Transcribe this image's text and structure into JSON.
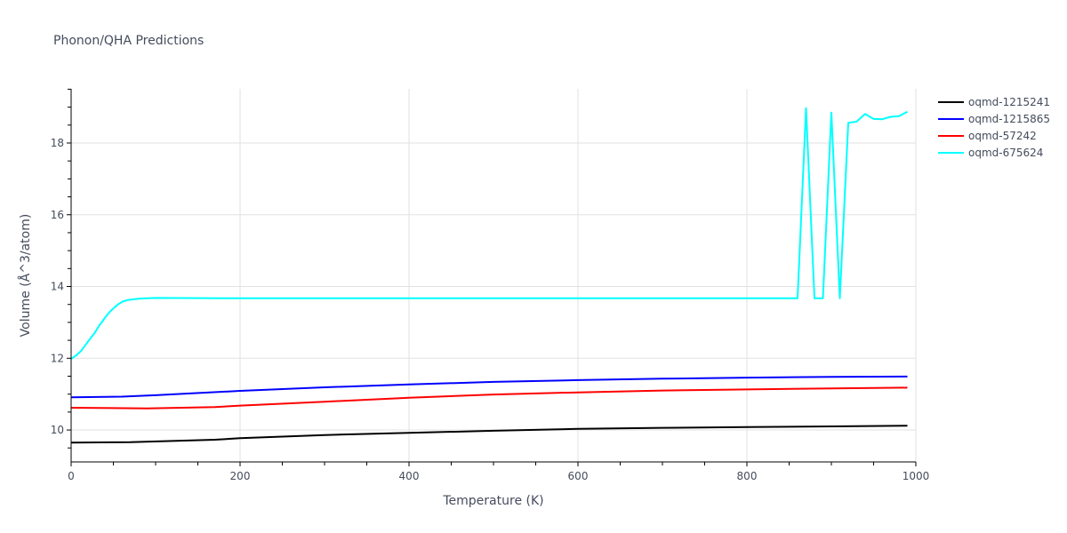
{
  "chart_data": {
    "type": "line",
    "title": "Phonon/QHA Predictions",
    "xlabel": "Temperature (K)",
    "ylabel": "Volume (Å^3/atom)",
    "xlim": [
      0,
      1000
    ],
    "ylim": [
      9.11,
      19.51
    ],
    "x_ticks": [
      0,
      200,
      400,
      600,
      800,
      1000
    ],
    "y_ticks": [
      10,
      12,
      14,
      16,
      18
    ],
    "grid": true,
    "legend_position": "right-top",
    "series": [
      {
        "name": "oqmd-1215241",
        "color": "#000000",
        "x": [
          0,
          70,
          170,
          200,
          300,
          400,
          500,
          600,
          700,
          800,
          900,
          990
        ],
        "y": [
          9.65,
          9.66,
          9.73,
          9.77,
          9.86,
          9.92,
          9.98,
          10.03,
          10.06,
          10.08,
          10.1,
          10.12
        ]
      },
      {
        "name": "oqmd-1215865",
        "color": "#0000ff",
        "x": [
          0,
          60,
          100,
          200,
          300,
          400,
          500,
          600,
          700,
          800,
          900,
          990
        ],
        "y": [
          10.91,
          10.93,
          10.97,
          11.09,
          11.19,
          11.27,
          11.34,
          11.39,
          11.43,
          11.46,
          11.48,
          11.49
        ]
      },
      {
        "name": "oqmd-57242",
        "color": "#ff0000",
        "x": [
          0,
          50,
          90,
          170,
          200,
          300,
          400,
          500,
          600,
          700,
          800,
          900,
          990
        ],
        "y": [
          10.62,
          10.61,
          10.6,
          10.64,
          10.68,
          10.79,
          10.9,
          10.99,
          11.05,
          11.1,
          11.13,
          11.16,
          11.18
        ],
        "_note": ""
      },
      {
        "name": "oqmd-675624",
        "color": "#00ffff",
        "x": [
          0,
          6,
          12,
          17,
          22,
          28,
          33,
          38,
          42,
          46,
          51,
          56,
          61,
          66,
          72,
          80,
          90,
          100,
          200,
          300,
          400,
          500,
          600,
          700,
          800,
          860,
          870,
          880,
          890,
          900,
          910,
          920,
          930,
          940,
          950,
          960,
          970,
          980,
          990
        ],
        "y": [
          11.98,
          12.08,
          12.21,
          12.37,
          12.53,
          12.71,
          12.9,
          13.06,
          13.19,
          13.3,
          13.41,
          13.51,
          13.58,
          13.62,
          13.64,
          13.66,
          13.67,
          13.68,
          13.67,
          13.67,
          13.67,
          13.67,
          13.67,
          13.67,
          13.67,
          13.67,
          18.97,
          13.67,
          13.67,
          18.85,
          13.67,
          18.56,
          18.6,
          18.81,
          18.67,
          18.66,
          18.73,
          18.75,
          18.87
        ]
      }
    ]
  },
  "legend": {
    "items": [
      {
        "label": "oqmd-1215241",
        "color": "#000000"
      },
      {
        "label": "oqmd-1215865",
        "color": "#0000ff"
      },
      {
        "label": "oqmd-57242",
        "color": "#ff0000"
      },
      {
        "label": "oqmd-675624",
        "color": "#00ffff"
      }
    ]
  }
}
